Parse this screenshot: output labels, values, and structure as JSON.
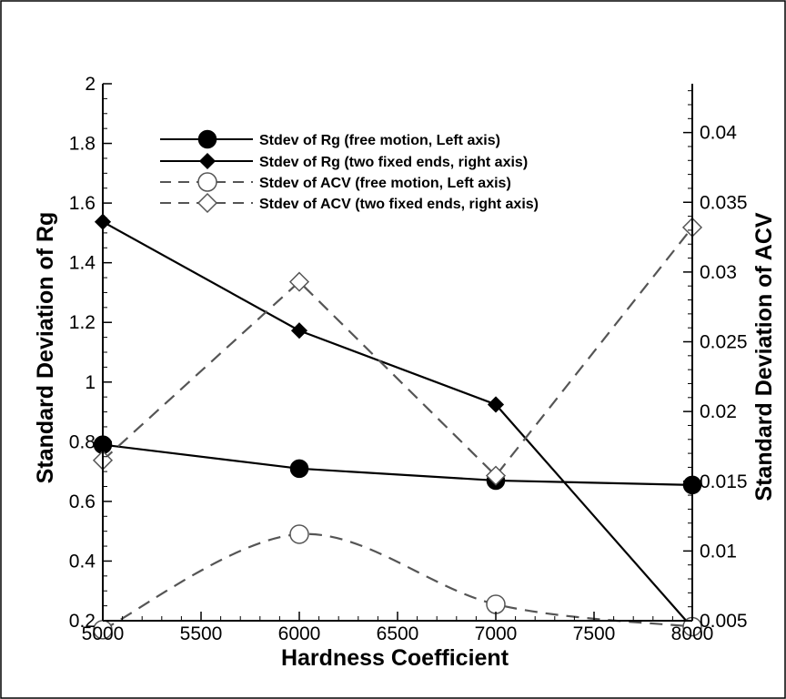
{
  "chart_data": {
    "type": "line",
    "xlabel": "Hardness Coefficient",
    "ylabel_left": "Standard Deviation of Rg",
    "ylabel_right": "Standard Deviation of ACV",
    "xlim": [
      5000,
      8000
    ],
    "ylim_left": [
      0.2,
      2
    ],
    "ylim_right": [
      0.005,
      0.0435
    ],
    "x_ticks": [
      "5000",
      "5500",
      "6000",
      "6500",
      "7000",
      "7500",
      "8000"
    ],
    "x_tick_values": [
      5000,
      5500,
      6000,
      6500,
      7000,
      7500,
      8000
    ],
    "y_left_ticks": [
      "0.2",
      "0.4",
      "0.6",
      "0.8",
      "1",
      "1.2",
      "1.4",
      "1.6",
      "1.8",
      "2"
    ],
    "y_left_tick_values": [
      0.2,
      0.4,
      0.6,
      0.8,
      1.0,
      1.2,
      1.4,
      1.6,
      1.8,
      2.0
    ],
    "y_right_ticks": [
      "0.005",
      "0.01",
      "0.015",
      "0.02",
      "0.025",
      "0.03",
      "0.035",
      "0.04"
    ],
    "y_right_tick_values": [
      0.005,
      0.01,
      0.015,
      0.02,
      0.025,
      0.03,
      0.035,
      0.04
    ],
    "grid": false,
    "legend_position": "top-center",
    "series": [
      {
        "name": "Stdev of Rg (free motion, Left axis)",
        "axis": "left",
        "x": [
          5000,
          6000,
          7000,
          8000
        ],
        "y": [
          0.79,
          0.71,
          0.67,
          0.655
        ],
        "line": "solid",
        "marker": "circle",
        "filled": true,
        "color": "#000000"
      },
      {
        "name": "Stdev of Rg (two fixed ends, right axis)",
        "axis": "right",
        "x": [
          5000,
          6000,
          7000,
          8000
        ],
        "y": [
          0.0336,
          0.0258,
          0.0205,
          0.0045
        ],
        "line": "solid",
        "marker": "diamond",
        "filled": true,
        "color": "#000000"
      },
      {
        "name": "Stdev of ACV (free motion, Left axis)",
        "axis": "left",
        "x": [
          5000,
          6000,
          7000,
          8000
        ],
        "y": [
          0.17,
          0.49,
          0.255,
          0.18
        ],
        "line": "dashed",
        "marker": "circle",
        "filled": false,
        "color": "#555555"
      },
      {
        "name": "Stdev of ACV  (two fixed ends, right axis)",
        "axis": "right",
        "x": [
          5000,
          6000,
          7000,
          8000
        ],
        "y": [
          0.0165,
          0.0293,
          0.0154,
          0.0332
        ],
        "line": "dashed",
        "marker": "diamond",
        "filled": false,
        "color": "#555555"
      }
    ]
  }
}
